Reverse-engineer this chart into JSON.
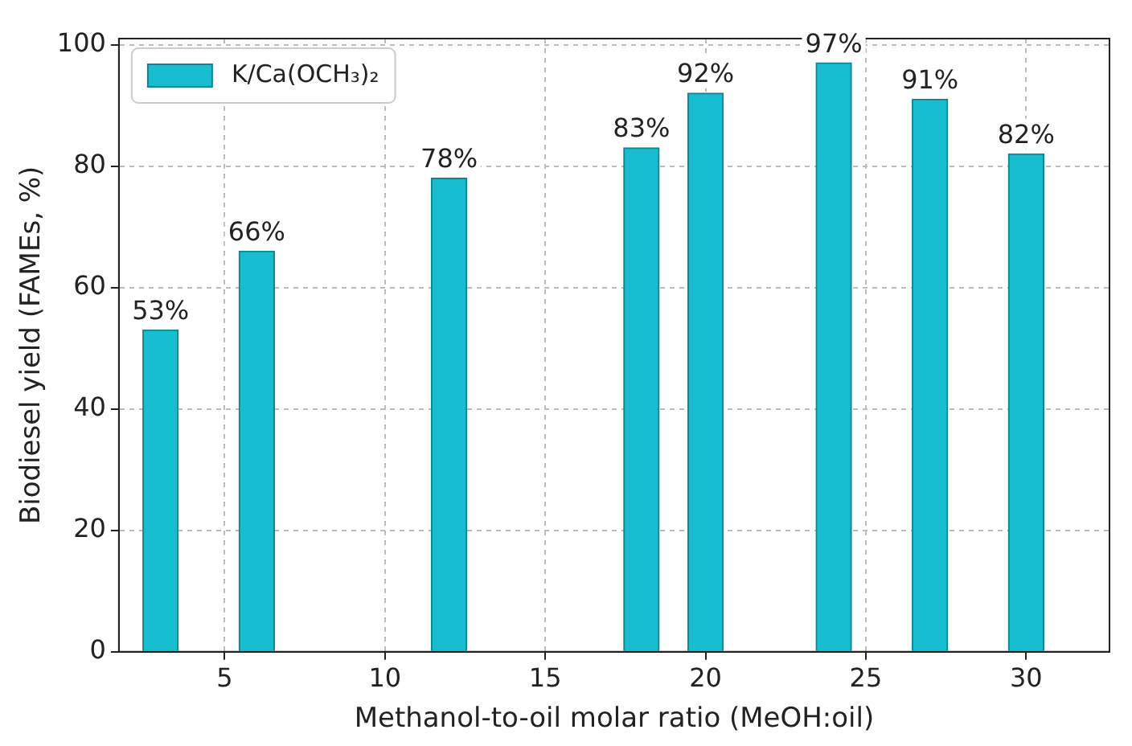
{
  "chart_data": {
    "type": "bar",
    "xlabel": "Methanol-to-oil molar ratio (MeOH:oil)",
    "ylabel": "Biodiesel yield (FAMEs, %)",
    "x": [
      3,
      6,
      12,
      18,
      20,
      24,
      27,
      30
    ],
    "series": [
      {
        "name": "K/Ca(OCH₃)₂",
        "color": "#17becf",
        "values": [
          53,
          66,
          78,
          83,
          92,
          97,
          91,
          82
        ],
        "value_labels": [
          "53%",
          "66%",
          "78%",
          "83%",
          "92%",
          "97%",
          "91%",
          "82%"
        ]
      }
    ],
    "xlim": [
      1.7,
      32.6
    ],
    "xticks": [
      5,
      10,
      15,
      20,
      25,
      30
    ],
    "ylim": [
      0,
      101
    ],
    "yticks": [
      0,
      20,
      40,
      60,
      80,
      100
    ],
    "grid": true,
    "legend": "top left"
  }
}
